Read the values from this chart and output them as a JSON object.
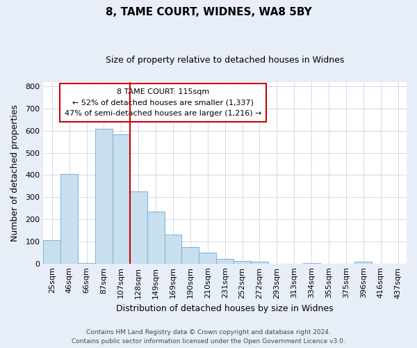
{
  "title": "8, TAME COURT, WIDNES, WA8 5BY",
  "subtitle": "Size of property relative to detached houses in Widnes",
  "xlabel": "Distribution of detached houses by size in Widnes",
  "ylabel": "Number of detached properties",
  "bar_labels": [
    "25sqm",
    "46sqm",
    "66sqm",
    "87sqm",
    "107sqm",
    "128sqm",
    "149sqm",
    "169sqm",
    "190sqm",
    "210sqm",
    "231sqm",
    "252sqm",
    "272sqm",
    "293sqm",
    "313sqm",
    "334sqm",
    "355sqm",
    "375sqm",
    "396sqm",
    "416sqm",
    "437sqm"
  ],
  "bar_values": [
    105,
    405,
    3,
    610,
    585,
    325,
    235,
    130,
    75,
    50,
    22,
    12,
    8,
    0,
    0,
    3,
    0,
    0,
    7,
    0,
    0
  ],
  "bar_color": "#c8dff0",
  "bar_edge_color": "#8ab4d4",
  "vline_x": 4.5,
  "vline_color": "#cc0000",
  "annotation_title": "8 TAME COURT: 115sqm",
  "annotation_line1": "← 52% of detached houses are smaller (1,337)",
  "annotation_line2": "47% of semi-detached houses are larger (1,216) →",
  "annotation_box_color": "#ffffff",
  "annotation_box_edge": "#cc0000",
  "ylim": [
    0,
    820
  ],
  "yticks": [
    0,
    100,
    200,
    300,
    400,
    500,
    600,
    700,
    800
  ],
  "footer1": "Contains HM Land Registry data © Crown copyright and database right 2024.",
  "footer2": "Contains public sector information licensed under the Open Government Licence v3.0.",
  "bg_color": "#e8eef8",
  "plot_bg_color": "#ffffff",
  "title_fontsize": 11,
  "subtitle_fontsize": 9,
  "xlabel_fontsize": 9,
  "ylabel_fontsize": 9,
  "tick_fontsize": 8,
  "annotation_fontsize": 8,
  "footer_fontsize": 6.5
}
